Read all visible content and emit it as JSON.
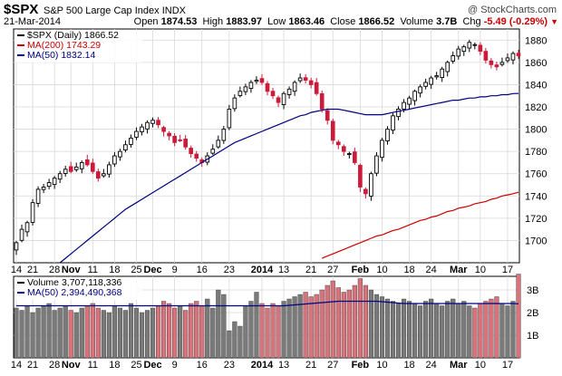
{
  "header": {
    "ticker": "$SPX",
    "name": "S&P 500 Large Cap Index",
    "exchange": "INDX",
    "watermark": "@ StockCharts.com",
    "date": "21-Mar-2014",
    "open_label": "Open",
    "open": "1874.53",
    "high_label": "High",
    "high": "1883.97",
    "low_label": "Low",
    "low": "1863.46",
    "close_label": "Close",
    "close": "1866.52",
    "volume_label": "Volume",
    "volume": "3.7B",
    "chg_label": "Chg",
    "chg": "-5.49 (-0.29%)",
    "chg_arrow": "▼"
  },
  "price_panel": {
    "legend": [
      {
        "label": "$SPX (Daily) 1866.52",
        "color": "#000000"
      },
      {
        "label": "MA(200) 1743.29",
        "color": "#cc0000"
      },
      {
        "label": "MA(50) 1832.14",
        "color": "#000080"
      }
    ],
    "y_ticks": [
      "1700",
      "1720",
      "1740",
      "1760",
      "1780",
      "1800",
      "1820",
      "1840",
      "1860",
      "1880"
    ]
  },
  "volume_panel": {
    "legend": [
      {
        "label": "Volume 3,707,118,336",
        "color": "#000000"
      },
      {
        "label": "MA(50) 2,394,490,368",
        "color": "#000080"
      }
    ],
    "y_ticks": [
      "1B",
      "2B",
      "3B"
    ]
  },
  "x_labels": [
    {
      "i": 0,
      "text": "14",
      "bold": false
    },
    {
      "i": 3,
      "text": "21",
      "bold": false
    },
    {
      "i": 7,
      "text": "28",
      "bold": false
    },
    {
      "i": 10,
      "text": "Nov",
      "bold": true
    },
    {
      "i": 14,
      "text": "11",
      "bold": false
    },
    {
      "i": 18,
      "text": "18",
      "bold": false
    },
    {
      "i": 22,
      "text": "25",
      "bold": false
    },
    {
      "i": 25,
      "text": "Dec",
      "bold": true
    },
    {
      "i": 29,
      "text": "9",
      "bold": false
    },
    {
      "i": 34,
      "text": "16",
      "bold": false
    },
    {
      "i": 39,
      "text": "23",
      "bold": false
    },
    {
      "i": 45,
      "text": "2014",
      "bold": true
    },
    {
      "i": 49,
      "text": "13",
      "bold": false
    },
    {
      "i": 54,
      "text": "21",
      "bold": false
    },
    {
      "i": 58,
      "text": "27",
      "bold": false
    },
    {
      "i": 63,
      "text": "Feb",
      "bold": true
    },
    {
      "i": 67,
      "text": "10",
      "bold": false
    },
    {
      "i": 72,
      "text": "18",
      "bold": false
    },
    {
      "i": 76,
      "text": "24",
      "bold": false
    },
    {
      "i": 81,
      "text": "Mar",
      "bold": true
    },
    {
      "i": 85,
      "text": "10",
      "bold": false
    },
    {
      "i": 90,
      "text": "17",
      "bold": false
    }
  ],
  "chart_data": {
    "type": "candlestick",
    "ylim": [
      1680,
      1890
    ],
    "volume_ylim": [
      0,
      3.6
    ],
    "closes": [
      1698,
      1710,
      1716,
      1734,
      1746,
      1748,
      1752,
      1756,
      1760,
      1764,
      1762,
      1766,
      1770,
      1768,
      1762,
      1756,
      1760,
      1768,
      1776,
      1780,
      1786,
      1792,
      1798,
      1802,
      1806,
      1808,
      1804,
      1798,
      1794,
      1788,
      1790,
      1784,
      1778,
      1774,
      1770,
      1776,
      1782,
      1790,
      1800,
      1818,
      1828,
      1834,
      1838,
      1842,
      1844,
      1842,
      1834,
      1830,
      1824,
      1832,
      1836,
      1842,
      1846,
      1844,
      1840,
      1832,
      1818,
      1808,
      1790,
      1786,
      1780,
      1778,
      1770,
      1748,
      1742,
      1760,
      1776,
      1790,
      1800,
      1812,
      1818,
      1824,
      1828,
      1834,
      1838,
      1842,
      1846,
      1848,
      1854,
      1860,
      1866,
      1872,
      1874,
      1878,
      1876,
      1870,
      1862,
      1858,
      1856,
      1860,
      1864,
      1868,
      1866
    ],
    "ma200": [
      null,
      null,
      null,
      null,
      null,
      null,
      null,
      null,
      null,
      null,
      null,
      null,
      null,
      null,
      null,
      null,
      null,
      null,
      null,
      null,
      null,
      null,
      null,
      null,
      null,
      null,
      null,
      null,
      null,
      null,
      null,
      null,
      null,
      null,
      null,
      null,
      null,
      null,
      null,
      null,
      null,
      null,
      null,
      null,
      null,
      null,
      null,
      null,
      null,
      null,
      null,
      null,
      null,
      null,
      null,
      null,
      1684,
      1686,
      1688,
      1690,
      1692,
      1694,
      1696,
      1698,
      1700,
      1702,
      1704,
      1705,
      1707,
      1709,
      1710,
      1712,
      1714,
      1716,
      1718,
      1719,
      1721,
      1722,
      1724,
      1726,
      1727,
      1729,
      1730,
      1731,
      1733,
      1734,
      1735,
      1737,
      1738,
      1740,
      1741,
      1742,
      1743.29
    ],
    "ma50": [
      null,
      null,
      null,
      null,
      null,
      null,
      null,
      null,
      1680,
      1684,
      1688,
      1692,
      1696,
      1700,
      1704,
      1708,
      1712,
      1716,
      1720,
      1724,
      1728,
      1731,
      1734,
      1737,
      1740,
      1743,
      1746,
      1749,
      1752,
      1755,
      1758,
      1761,
      1764,
      1767,
      1770,
      1773,
      1776,
      1779,
      1782,
      1785,
      1788,
      1790,
      1792,
      1794,
      1796,
      1798,
      1800,
      1802,
      1804,
      1806,
      1808,
      1810,
      1812,
      1813,
      1815,
      1816,
      1817,
      1818,
      1818,
      1818,
      1817,
      1816,
      1815,
      1814,
      1813,
      1813,
      1813,
      1813,
      1814,
      1815,
      1816,
      1817,
      1818,
      1819,
      1820,
      1821,
      1822,
      1823,
      1824,
      1825,
      1826,
      1826,
      1827,
      1828,
      1828,
      1829,
      1829,
      1830,
      1830,
      1831,
      1831,
      1832,
      1832.14
    ],
    "volumes": [
      2.2,
      2.1,
      2.3,
      2.0,
      2.2,
      2.3,
      2.4,
      2.1,
      2.2,
      2.3,
      2.1,
      2.0,
      2.2,
      2.3,
      2.4,
      2.2,
      2.1,
      2.0,
      2.3,
      2.2,
      2.1,
      2.4,
      2.2,
      2.0,
      2.1,
      2.2,
      2.3,
      2.5,
      2.4,
      2.2,
      2.3,
      2.1,
      2.4,
      2.5,
      2.3,
      2.6,
      2.2,
      3.0,
      2.8,
      1.2,
      1.6,
      1.4,
      2.3,
      2.5,
      2.9,
      2.4,
      2.2,
      2.4,
      2.3,
      2.5,
      2.6,
      2.7,
      2.8,
      2.9,
      2.7,
      2.8,
      3.0,
      3.2,
      3.4,
      3.1,
      2.9,
      3.0,
      3.2,
      3.5,
      3.2,
      3.0,
      2.8,
      2.7,
      2.6,
      2.5,
      2.4,
      2.6,
      2.5,
      2.4,
      2.3,
      2.5,
      2.6,
      2.4,
      2.3,
      2.5,
      2.6,
      2.4,
      2.5,
      2.3,
      2.2,
      2.4,
      2.5,
      2.6,
      2.7,
      2.4,
      2.3,
      2.5,
      3.7
    ],
    "volume_ma50": [
      2.3,
      2.3,
      2.3,
      2.3,
      2.3,
      2.3,
      2.3,
      2.3,
      2.3,
      2.3,
      2.3,
      2.3,
      2.3,
      2.3,
      2.3,
      2.3,
      2.3,
      2.3,
      2.3,
      2.3,
      2.3,
      2.3,
      2.3,
      2.3,
      2.3,
      2.3,
      2.3,
      2.3,
      2.3,
      2.3,
      2.3,
      2.3,
      2.3,
      2.3,
      2.3,
      2.3,
      2.3,
      2.3,
      2.3,
      2.3,
      2.3,
      2.3,
      2.3,
      2.3,
      2.3,
      2.3,
      2.3,
      2.3,
      2.3,
      2.3,
      2.32,
      2.34,
      2.36,
      2.38,
      2.4,
      2.42,
      2.44,
      2.46,
      2.48,
      2.5,
      2.5,
      2.5,
      2.5,
      2.5,
      2.5,
      2.5,
      2.5,
      2.48,
      2.46,
      2.44,
      2.42,
      2.4,
      2.4,
      2.4,
      2.4,
      2.4,
      2.4,
      2.4,
      2.4,
      2.4,
      2.4,
      2.4,
      2.4,
      2.4,
      2.4,
      2.4,
      2.4,
      2.4,
      2.4,
      2.4,
      2.4,
      2.4,
      2.39
    ]
  },
  "colors": {
    "up_candle": "#000000",
    "down_candle": "#cc1a3a",
    "vol_up": "#7a7a7a",
    "vol_down": "#d9737b",
    "ma200": "#cc0000",
    "ma50": "#000080",
    "grid": "#d8d8d8"
  }
}
